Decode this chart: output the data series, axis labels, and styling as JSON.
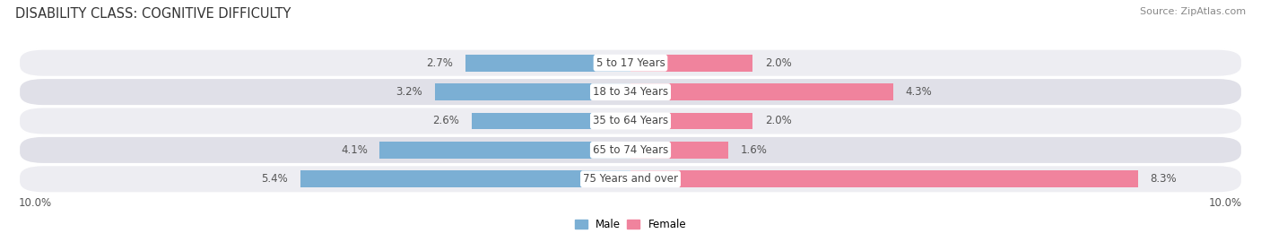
{
  "title": "DISABILITY CLASS: COGNITIVE DIFFICULTY",
  "source": "Source: ZipAtlas.com",
  "categories": [
    "5 to 17 Years",
    "18 to 34 Years",
    "35 to 64 Years",
    "65 to 74 Years",
    "75 Years and over"
  ],
  "male_values": [
    2.7,
    3.2,
    2.6,
    4.1,
    5.4
  ],
  "female_values": [
    2.0,
    4.3,
    2.0,
    1.6,
    8.3
  ],
  "male_color": "#7bafd4",
  "female_color": "#f0839d",
  "row_bg_color_light": "#ededf2",
  "row_bg_color_dark": "#e0e0e8",
  "max_val": 10.0,
  "title_fontsize": 10.5,
  "label_fontsize": 8.5,
  "tick_fontsize": 8.5,
  "source_fontsize": 8,
  "legend_fontsize": 8.5,
  "axis_label_left": "10.0%",
  "axis_label_right": "10.0%"
}
